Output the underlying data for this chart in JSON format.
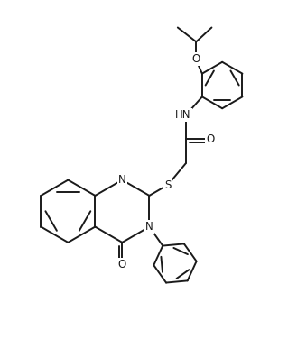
{
  "background_color": "#ffffff",
  "line_color": "#1a1a1a",
  "line_width": 1.4,
  "font_size": 8.5,
  "figsize": [
    3.19,
    3.86
  ],
  "dpi": 100,
  "xlim": [
    0,
    9.5
  ],
  "ylim": [
    0,
    11.5
  ]
}
